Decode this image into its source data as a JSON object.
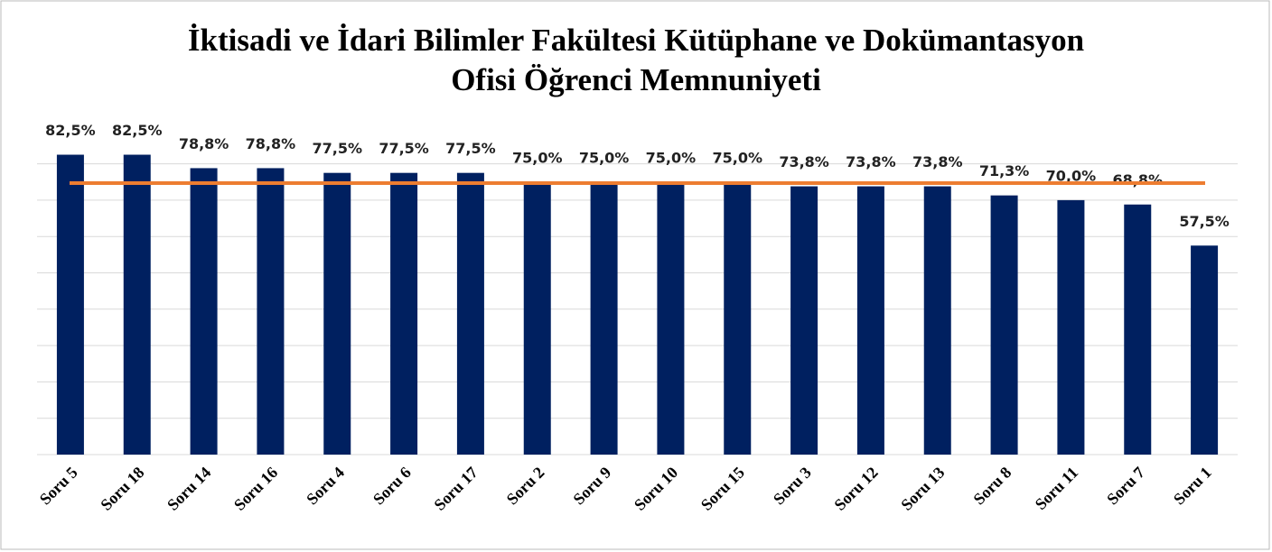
{
  "chart_data": {
    "type": "bar",
    "title": [
      "İktisadi ve İdari Bilimler Fakültesi Kütüphane ve Dokümantasyon",
      "Ofisi Öğrenci Memnuniyeti"
    ],
    "categories": [
      "Soru 5",
      "Soru 18",
      "Soru 14",
      "Soru 16",
      "Soru 4",
      "Soru 6",
      "Soru 17",
      "Soru 2",
      "Soru 9",
      "Soru 10",
      "Soru 15",
      "Soru 3",
      "Soru 12",
      "Soru 13",
      "Soru 8",
      "Soru 11",
      "Soru 7",
      "Soru 1"
    ],
    "values": [
      82.5,
      82.5,
      78.8,
      78.8,
      77.5,
      77.5,
      77.5,
      75.0,
      75.0,
      75.0,
      75.0,
      73.8,
      73.8,
      73.8,
      71.3,
      70.0,
      68.8,
      57.5
    ],
    "value_labels": [
      "82,5%",
      "82,5%",
      "78,8%",
      "78,8%",
      "77,5%",
      "77,5%",
      "77,5%",
      "75,0%",
      "75,0%",
      "75,0%",
      "75,0%",
      "73,8%",
      "73,8%",
      "73,8%",
      "71,3%",
      "70,0%",
      "68,8%",
      "57,5%"
    ],
    "color": "#002060",
    "ylim": [
      0,
      90
    ],
    "yticks": [
      0,
      10,
      20,
      30,
      40,
      50,
      60,
      70,
      80
    ],
    "grid": true,
    "reference_line": {
      "value": 74.7,
      "color": "#ed7d31"
    }
  }
}
